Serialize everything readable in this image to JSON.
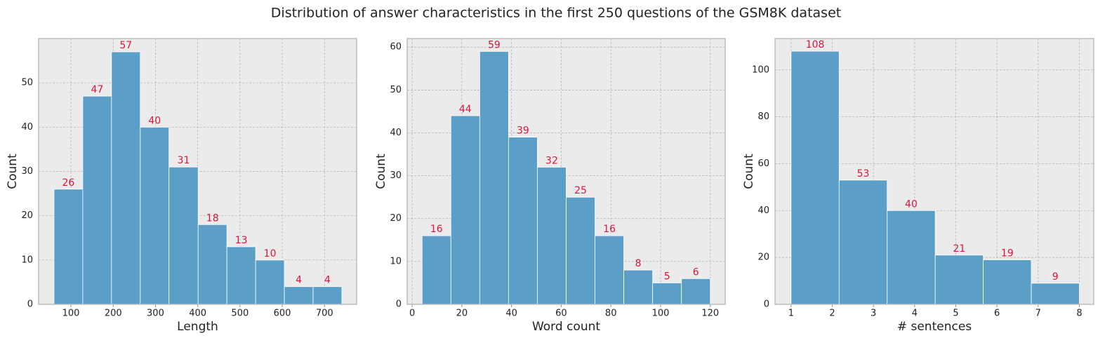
{
  "title": "Distribution of answer characteristics in the first 250 questions of the GSM8K dataset",
  "chart_data": [
    {
      "type": "histogram",
      "xlabel": "Length",
      "ylabel": "Count",
      "bins": [
        60,
        128,
        196,
        264,
        332,
        401,
        469,
        537,
        605,
        673,
        741
      ],
      "values": [
        26,
        47,
        57,
        40,
        31,
        18,
        13,
        10,
        4,
        4
      ],
      "color": "#5b9fc8",
      "label_color": "#dc143c",
      "xlim": [
        23.5,
        776
      ],
      "ylim": [
        0,
        60
      ],
      "xticks": [
        100,
        200,
        300,
        400,
        500,
        600,
        700
      ],
      "yticks": [
        0,
        10,
        20,
        30,
        40,
        50
      ],
      "grid": true
    },
    {
      "type": "histogram",
      "xlabel": "Word count",
      "ylabel": "Count",
      "bins": [
        4,
        15.6,
        27.2,
        38.8,
        50.4,
        62,
        73.6,
        85.2,
        96.8,
        108.4,
        120
      ],
      "values": [
        16,
        44,
        59,
        39,
        32,
        25,
        16,
        8,
        5,
        6
      ],
      "color": "#5b9fc8",
      "label_color": "#dc143c",
      "xlim": [
        -2,
        126
      ],
      "ylim": [
        0,
        62
      ],
      "xticks": [
        0,
        20,
        40,
        60,
        80,
        100,
        120
      ],
      "yticks": [
        0,
        10,
        20,
        30,
        40,
        50,
        60
      ],
      "grid": true
    },
    {
      "type": "histogram",
      "xlabel": "# sentences",
      "ylabel": "Count",
      "bins": [
        1,
        2.167,
        3.333,
        4.5,
        5.667,
        6.833,
        8
      ],
      "values": [
        108,
        53,
        40,
        21,
        19,
        9
      ],
      "color": "#5b9fc8",
      "label_color": "#dc143c",
      "xlim": [
        0.61,
        8.35
      ],
      "ylim": [
        0,
        113.4
      ],
      "xticks": [
        1,
        2,
        3,
        4,
        5,
        6,
        7,
        8
      ],
      "yticks": [
        0,
        20,
        40,
        60,
        80,
        100
      ],
      "grid": true
    }
  ]
}
